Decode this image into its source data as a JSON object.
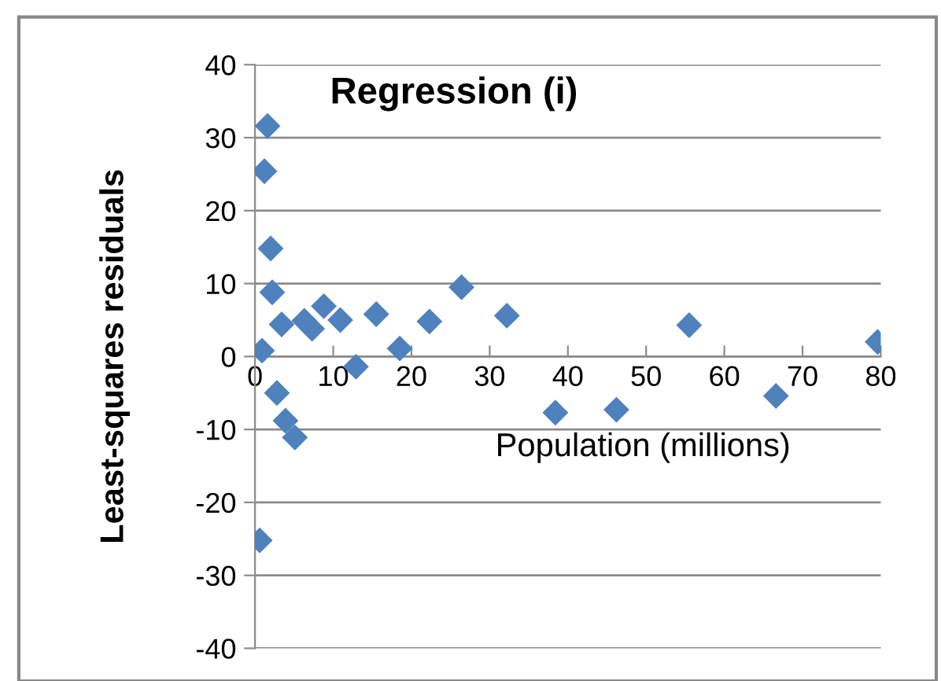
{
  "chart_data": {
    "type": "scatter",
    "title": "Regression (i)",
    "xlabel": "Population (millions)",
    "ylabel": "Least-squares residuals",
    "series": [
      {
        "color": "#4f81bd",
        "x": [
          1.6,
          1.2,
          2.0,
          2.2,
          3.4,
          0.9,
          2.8,
          3.9,
          5.1,
          0.6,
          6.3,
          7.3,
          8.8,
          10.9,
          12.9,
          15.5,
          18.5,
          22.3,
          26.4,
          32.2,
          38.4,
          46.2,
          55.5,
          66.6,
          79.6
        ],
        "values": [
          31.6,
          25.4,
          14.8,
          8.8,
          4.4,
          0.8,
          -5,
          -8.8,
          -11.1,
          -25.2,
          4.9,
          3.8,
          6.9,
          5.0,
          -1.4,
          5.8,
          1.1,
          4.8,
          9.5,
          5.6,
          -7.7,
          -7.3,
          4.3,
          -5.4,
          2.0
        ]
      }
    ],
    "xlim": [
      0,
      80
    ],
    "xticks": [
      0,
      10,
      20,
      30,
      40,
      50,
      60,
      70,
      80
    ],
    "ylim": [
      -40,
      40
    ],
    "yticks": [
      -40,
      -30,
      -20,
      -10,
      0,
      10,
      20,
      30,
      40
    ],
    "grid": "y",
    "marker": "diamond",
    "legend": false
  }
}
